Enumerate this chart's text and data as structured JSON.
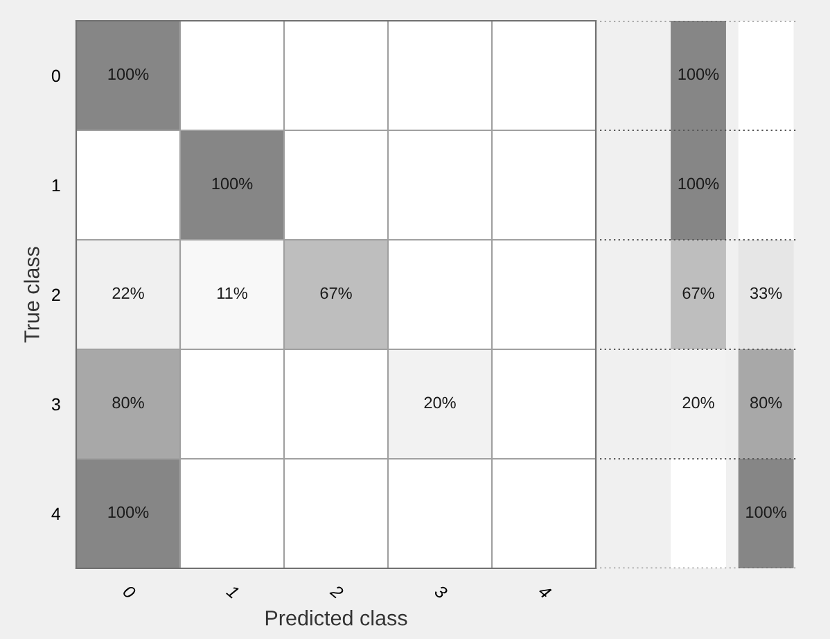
{
  "chart_data": [
    {
      "type": "heatmap",
      "xlabel": "Predicted class",
      "ylabel": "True class",
      "categories": [
        "0",
        "1",
        "2",
        "3",
        "4"
      ],
      "y_categories": [
        "0",
        "1",
        "2",
        "3",
        "4"
      ],
      "cells": [
        [
          100,
          null,
          null,
          null,
          null
        ],
        [
          null,
          100,
          null,
          null,
          null
        ],
        [
          22,
          11,
          67,
          null,
          null
        ],
        [
          80,
          null,
          null,
          20,
          null
        ],
        [
          100,
          null,
          null,
          null,
          null
        ]
      ],
      "cell_labels": [
        [
          "100%",
          null,
          null,
          null,
          null
        ],
        [
          null,
          "100%",
          null,
          null,
          null
        ],
        [
          "22%",
          "11%",
          "67%",
          null,
          null
        ],
        [
          "80%",
          null,
          null,
          "20%",
          null
        ],
        [
          "100%",
          null,
          null,
          null,
          null
        ]
      ]
    },
    {
      "type": "heatmap",
      "categories": [
        null,
        null
      ],
      "y_categories": [
        null,
        null,
        null,
        null,
        null
      ],
      "cells": [
        [
          100,
          null
        ],
        [
          100,
          null
        ],
        [
          67,
          33
        ],
        [
          20,
          80
        ],
        [
          null,
          100
        ]
      ],
      "cell_labels": [
        [
          "100%",
          null
        ],
        [
          "100%",
          null
        ],
        [
          "67%",
          "33%"
        ],
        [
          "20%",
          "80%"
        ],
        [
          null,
          "100%"
        ]
      ]
    }
  ]
}
